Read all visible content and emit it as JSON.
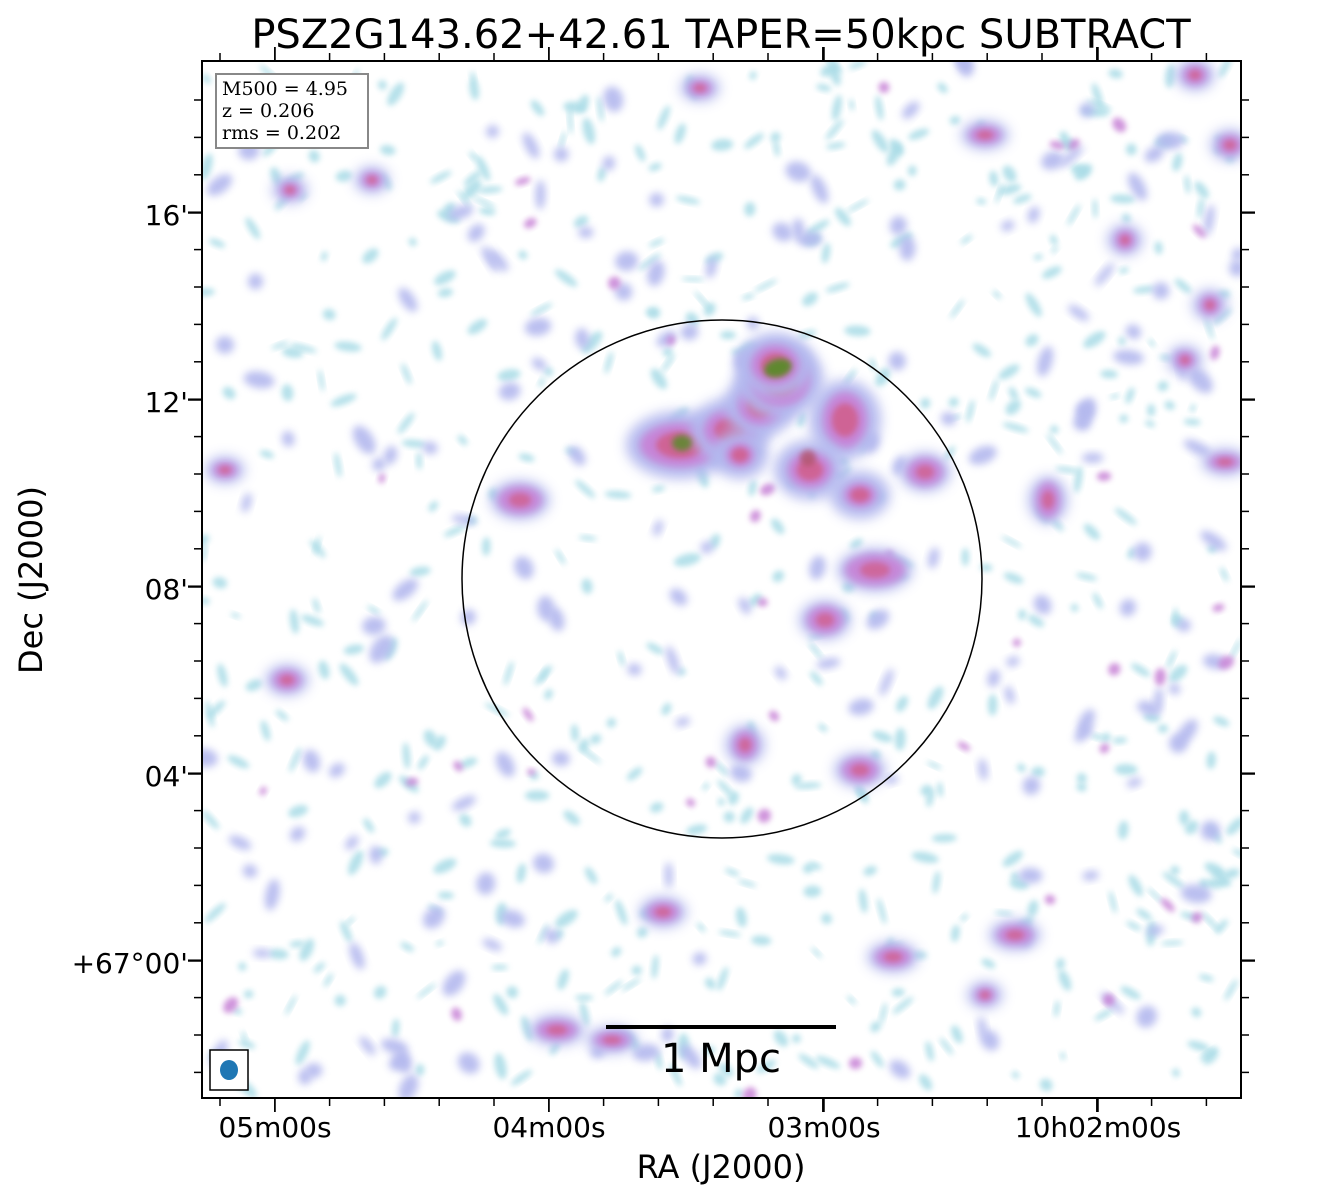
{
  "figure": {
    "title": "PSZ2G143.62+42.61 TAPER=50kpc SUBTRACT",
    "xlabel": "RA (J2000)",
    "ylabel": "Dec (J2000)",
    "info": {
      "m500": "M500 = 4.95",
      "z": "z = 0.206",
      "rms": "rms = 0.202"
    },
    "scalebar": {
      "label": "1 Mpc"
    },
    "beam": {
      "color": "#1f77b4"
    },
    "colors": {
      "faint": "#a8dbe6",
      "low": "#b3b8ee",
      "mid": "#c782d6",
      "high": "#d0608e",
      "peak": "#5a8a2a"
    }
  },
  "chart_data": {
    "type": "heatmap",
    "title": "PSZ2G143.62+42.61 TAPER=50kpc SUBTRACT",
    "xlabel": "RA (J2000)",
    "ylabel": "Dec (J2000)",
    "x_ticks": [
      "05m00s",
      "04m00s",
      "03m00s",
      "10h02m00s"
    ],
    "y_ticks": [
      "16'",
      "12'",
      "08'",
      "04'",
      "+67°00'"
    ],
    "annotations": [
      "M500 = 4.95",
      "z = 0.206",
      "rms = 0.202",
      "1 Mpc"
    ]
  }
}
